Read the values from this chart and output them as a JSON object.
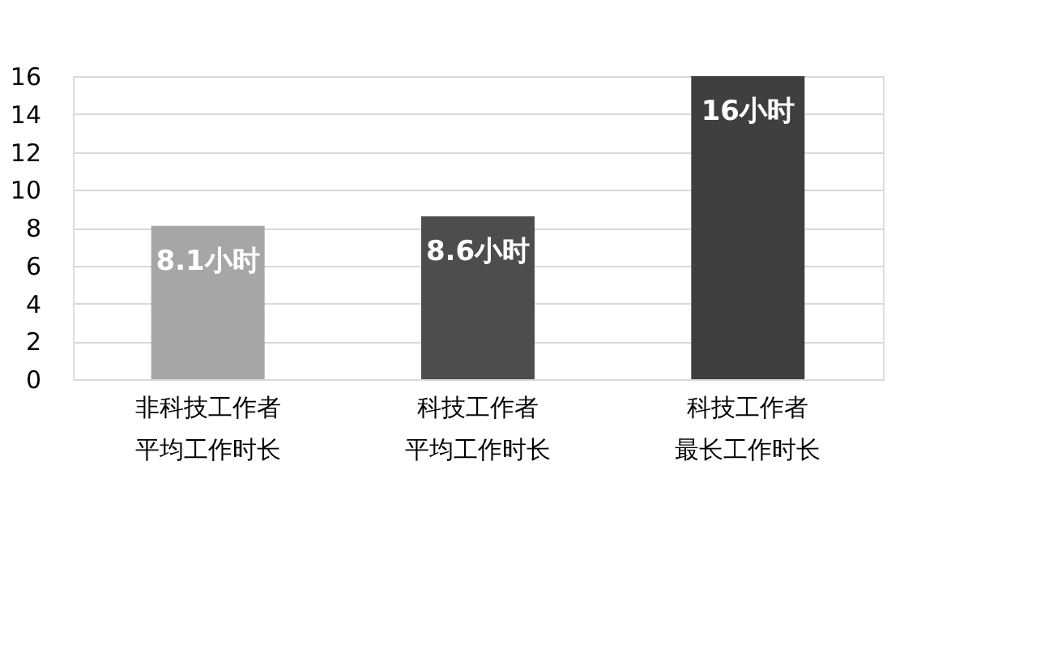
{
  "chart_data": {
    "type": "bar",
    "categories": [
      "非科技工作者平均工作时长",
      "科技工作者平均工作时长",
      "科技工作者最长工作时长"
    ],
    "values": [
      8.1,
      8.6,
      16
    ],
    "colors": [
      "#a6a6a6",
      "#4d4d4d",
      "#3f3f3f"
    ],
    "value_labels": [
      "8.1小时",
      "8.6小时",
      "16小时"
    ],
    "ylim": [
      0,
      16
    ],
    "yticks": [
      0,
      2,
      4,
      6,
      8,
      10,
      12,
      14,
      16
    ],
    "grid": "y"
  }
}
